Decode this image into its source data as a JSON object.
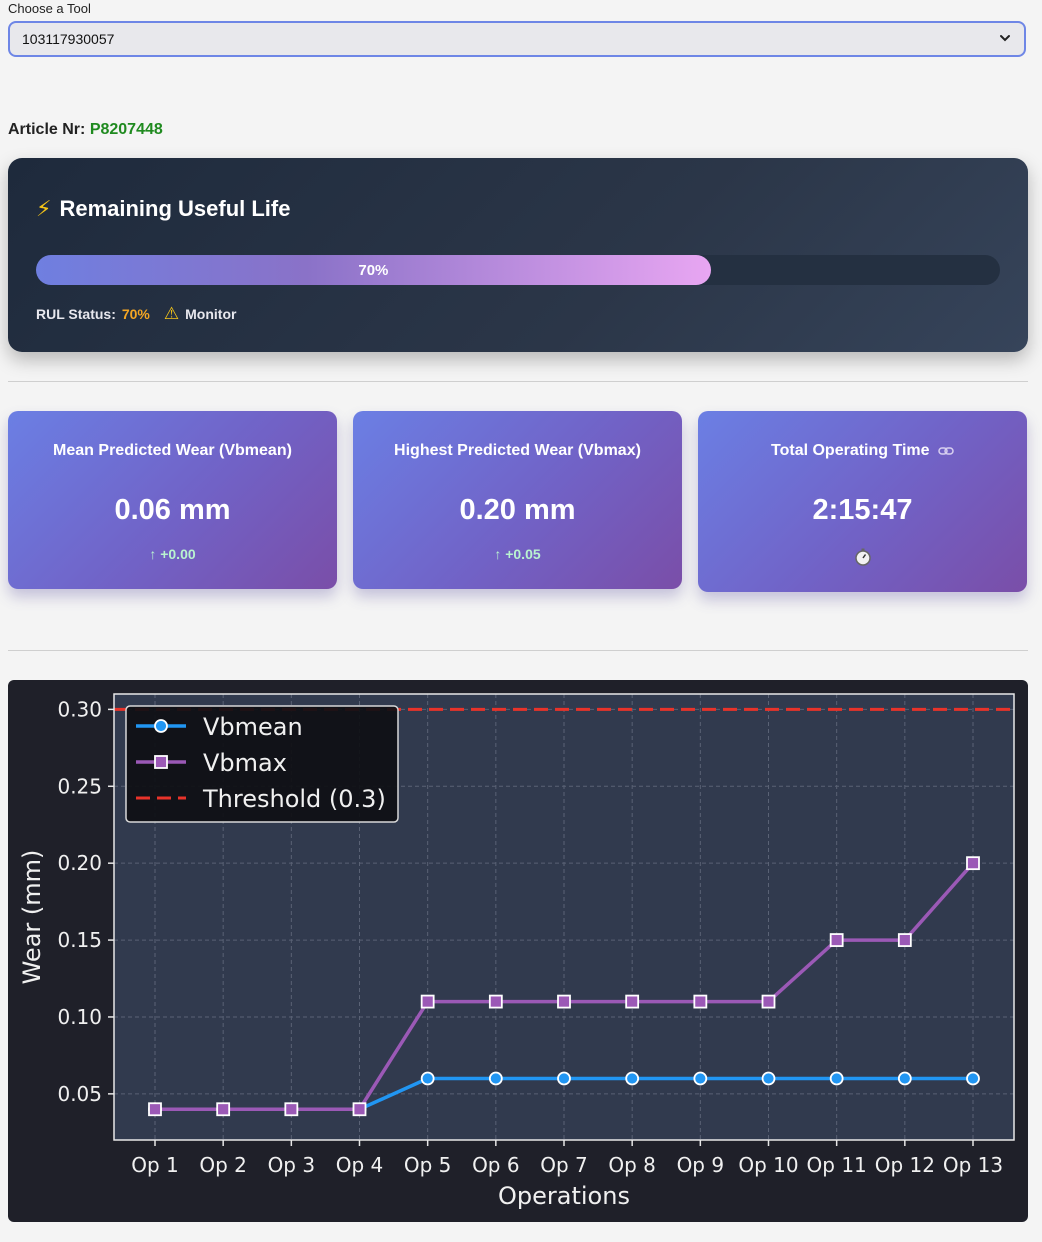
{
  "tool_select": {
    "label": "Choose a Tool",
    "value": "103117930057"
  },
  "article": {
    "label": "Article Nr:",
    "value": "P8207448"
  },
  "rul": {
    "icon": "lightning-icon",
    "title": "Remaining Useful Life",
    "progress_label": "70%",
    "progress_fraction": 0.7,
    "status_label": "RUL Status:",
    "status_value": "70%",
    "status_icon": "warning-icon",
    "status_text": "Monitor",
    "colors": {
      "status_value": "#f5a623",
      "fill_start": "#6f7fe0",
      "fill_end": "#e8a6f2"
    }
  },
  "metrics": [
    {
      "title": "Mean Predicted Wear (Vbmean)",
      "value": "0.06 mm",
      "delta": "↑ +0.00"
    },
    {
      "title": "Highest Predicted Wear (Vbmax)",
      "value": "0.20 mm",
      "delta": "↑ +0.05"
    },
    {
      "title": "Total Operating Time",
      "value": "2:15:47",
      "icon": "stopwatch-icon",
      "title_icon": "link-icon"
    }
  ],
  "chart_data": {
    "type": "line",
    "xlabel": "Operations",
    "ylabel": "Wear (mm)",
    "categories": [
      "Op 1",
      "Op 2",
      "Op 3",
      "Op 4",
      "Op 5",
      "Op 6",
      "Op 7",
      "Op 8",
      "Op 9",
      "Op 10",
      "Op 11",
      "Op 12",
      "Op 13"
    ],
    "ylim": [
      0.02,
      0.31
    ],
    "yticks": [
      "0.05",
      "0.10",
      "0.15",
      "0.20",
      "0.25",
      "0.30"
    ],
    "grid": true,
    "legend_position": "top-left",
    "series": [
      {
        "name": "Vbmean",
        "values": [
          0.04,
          0.04,
          0.04,
          0.04,
          0.06,
          0.06,
          0.06,
          0.06,
          0.06,
          0.06,
          0.06,
          0.06,
          0.06
        ],
        "color": "#2196f3",
        "marker": "circle"
      },
      {
        "name": "Vbmax",
        "values": [
          0.04,
          0.04,
          0.04,
          0.04,
          0.11,
          0.11,
          0.11,
          0.11,
          0.11,
          0.11,
          0.15,
          0.15,
          0.2
        ],
        "color": "#9b59b6",
        "marker": "square"
      }
    ],
    "threshold": {
      "name": "Threshold (0.3)",
      "value": 0.3,
      "color": "#e8332a"
    }
  }
}
